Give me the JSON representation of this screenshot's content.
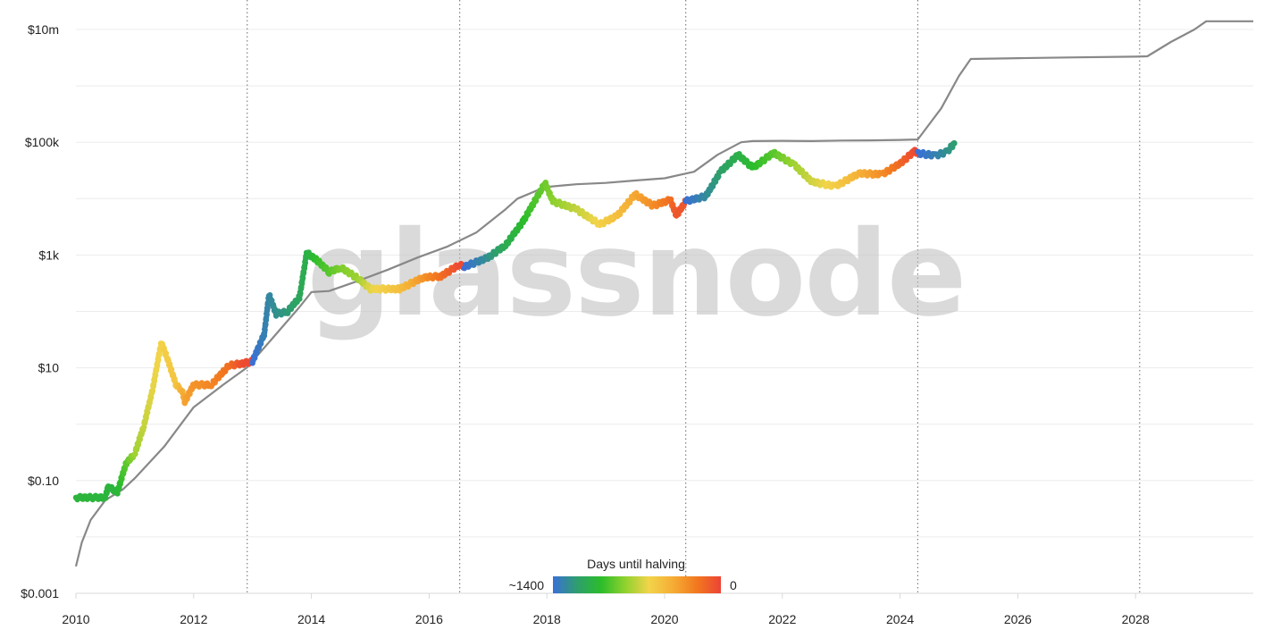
{
  "watermark": "glassnode",
  "chart_data": {
    "type": "scatter",
    "y_scale": "log",
    "ylim": [
      0.001,
      10000000
    ],
    "xlim": [
      2010.0,
      2030.0
    ],
    "y_ticks": [
      {
        "value": 0.001,
        "label": "$0.001"
      },
      {
        "value": 0.1,
        "label": "$0.10"
      },
      {
        "value": 10,
        "label": "$10"
      },
      {
        "value": 1000,
        "label": "$1k"
      },
      {
        "value": 100000,
        "label": "$100k"
      },
      {
        "value": 10000000,
        "label": "$10m"
      }
    ],
    "minor_y_gridlines": [
      0.01,
      1,
      100,
      10000,
      1000000
    ],
    "x_ticks": [
      {
        "value": 2010,
        "label": "2010"
      },
      {
        "value": 2012,
        "label": "2012"
      },
      {
        "value": 2014,
        "label": "2014"
      },
      {
        "value": 2016,
        "label": "2016"
      },
      {
        "value": 2018,
        "label": "2018"
      },
      {
        "value": 2020,
        "label": "2020"
      },
      {
        "value": 2022,
        "label": "2022"
      },
      {
        "value": 2024,
        "label": "2024"
      },
      {
        "value": 2026,
        "label": "2026"
      },
      {
        "value": 2028,
        "label": "2028"
      }
    ],
    "halving_dates": [
      2012.91,
      2016.52,
      2020.36,
      2024.3,
      2028.07
    ],
    "legend": {
      "title": "Days until halving",
      "min_label": "~1400",
      "max_label": "0",
      "gradient_colors": [
        "#3a6fd8",
        "#2e9e6e",
        "#2bbd2b",
        "#8fd12e",
        "#f2d44a",
        "#f5ad35",
        "#f2781f",
        "#ec4335"
      ],
      "placement": "bottom-center"
    },
    "colors": {
      "grid": "#ececec",
      "axis": "#d9d9d9",
      "line": "#888888",
      "halving_line": "#666666"
    },
    "series": [
      {
        "kind": "line",
        "values": [
          [
            2010.0,
            0.003
          ],
          [
            2010.1,
            0.008
          ],
          [
            2010.25,
            0.02
          ],
          [
            2010.5,
            0.045
          ],
          [
            2010.8,
            0.07
          ],
          [
            2011.0,
            0.11
          ],
          [
            2011.5,
            0.4
          ],
          [
            2012.0,
            2.0
          ],
          [
            2012.5,
            5.0
          ],
          [
            2012.9,
            10
          ],
          [
            2013.3,
            30
          ],
          [
            2013.8,
            120
          ],
          [
            2014.0,
            220
          ],
          [
            2014.3,
            230
          ],
          [
            2014.8,
            350
          ],
          [
            2015.3,
            550
          ],
          [
            2015.8,
            900
          ],
          [
            2016.3,
            1400
          ],
          [
            2016.8,
            2500
          ],
          [
            2017.3,
            6500
          ],
          [
            2017.5,
            10000
          ],
          [
            2017.97,
            16000
          ],
          [
            2018.5,
            18000
          ],
          [
            2019.0,
            19000
          ],
          [
            2019.5,
            21000
          ],
          [
            2020.0,
            23000
          ],
          [
            2020.5,
            30000
          ],
          [
            2020.9,
            60000
          ],
          [
            2021.3,
            100000
          ],
          [
            2021.5,
            105000
          ],
          [
            2022.0,
            106000
          ],
          [
            2022.5,
            105000
          ],
          [
            2023.0,
            107000
          ],
          [
            2023.5,
            108000
          ],
          [
            2024.0,
            110000
          ],
          [
            2024.3,
            112000
          ],
          [
            2024.7,
            400000
          ],
          [
            2025.0,
            1500000
          ],
          [
            2025.2,
            3000000
          ],
          [
            2026.0,
            3100000
          ],
          [
            2027.0,
            3200000
          ],
          [
            2028.0,
            3300000
          ],
          [
            2028.2,
            3350000
          ],
          [
            2028.6,
            6000000
          ],
          [
            2029.0,
            10000000
          ],
          [
            2029.2,
            14000000
          ],
          [
            2030.0,
            14000000
          ]
        ]
      },
      {
        "kind": "price",
        "values": [
          [
            2010.0,
            0.05,
            0.25
          ],
          [
            2010.5,
            0.05,
            0.25
          ],
          [
            2010.55,
            0.08,
            0.25
          ],
          [
            2010.7,
            0.06,
            0.25
          ],
          [
            2010.85,
            0.2,
            0.35
          ],
          [
            2011.0,
            0.3,
            0.45
          ],
          [
            2011.15,
            0.9,
            0.5
          ],
          [
            2011.3,
            4,
            0.55
          ],
          [
            2011.45,
            28,
            0.58
          ],
          [
            2011.55,
            15,
            0.6
          ],
          [
            2011.7,
            5,
            0.63
          ],
          [
            2011.8,
            4,
            0.7
          ],
          [
            2011.85,
            2.5,
            0.74
          ],
          [
            2012.0,
            5,
            0.78
          ],
          [
            2012.3,
            5,
            0.82
          ],
          [
            2012.6,
            11,
            0.88
          ],
          [
            2012.85,
            12,
            0.98
          ],
          [
            2013.0,
            13,
            0.0
          ],
          [
            2013.2,
            40,
            0.05
          ],
          [
            2013.28,
            200,
            0.07
          ],
          [
            2013.4,
            90,
            0.1
          ],
          [
            2013.6,
            100,
            0.13
          ],
          [
            2013.8,
            180,
            0.18
          ],
          [
            2013.92,
            1100,
            0.22
          ],
          [
            2014.1,
            800,
            0.3
          ],
          [
            2014.3,
            500,
            0.35
          ],
          [
            2014.5,
            600,
            0.4
          ],
          [
            2014.8,
            380,
            0.45
          ],
          [
            2015.0,
            250,
            0.55
          ],
          [
            2015.5,
            250,
            0.65
          ],
          [
            2015.9,
            400,
            0.78
          ],
          [
            2016.2,
            420,
            0.88
          ],
          [
            2016.52,
            680,
            0.98
          ],
          [
            2016.6,
            620,
            0.0
          ],
          [
            2017.0,
            900,
            0.1
          ],
          [
            2017.3,
            1500,
            0.2
          ],
          [
            2017.6,
            4000,
            0.28
          ],
          [
            2017.97,
            19000,
            0.38
          ],
          [
            2018.1,
            9000,
            0.42
          ],
          [
            2018.5,
            6500,
            0.5
          ],
          [
            2018.9,
            3500,
            0.58
          ],
          [
            2019.2,
            5000,
            0.65
          ],
          [
            2019.5,
            12000,
            0.73
          ],
          [
            2019.8,
            7500,
            0.8
          ],
          [
            2020.1,
            9500,
            0.88
          ],
          [
            2020.2,
            5000,
            0.95
          ],
          [
            2020.36,
            9000,
            0.0
          ],
          [
            2020.7,
            11000,
            0.08
          ],
          [
            2020.95,
            30000,
            0.15
          ],
          [
            2021.25,
            60000,
            0.22
          ],
          [
            2021.5,
            35000,
            0.28
          ],
          [
            2021.85,
            65000,
            0.35
          ],
          [
            2022.2,
            40000,
            0.45
          ],
          [
            2022.5,
            20000,
            0.52
          ],
          [
            2022.9,
            16500,
            0.6
          ],
          [
            2023.3,
            28000,
            0.7
          ],
          [
            2023.7,
            27000,
            0.8
          ],
          [
            2024.0,
            42000,
            0.9
          ],
          [
            2024.25,
            70000,
            0.98
          ],
          [
            2024.3,
            64000,
            0.0
          ],
          [
            2024.6,
            58000,
            0.05
          ],
          [
            2024.8,
            68000,
            0.1
          ],
          [
            2024.92,
            96000,
            0.14
          ]
        ]
      }
    ]
  }
}
